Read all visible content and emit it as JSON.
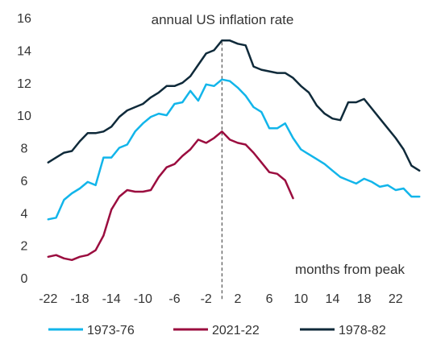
{
  "chart_data": {
    "type": "line",
    "title": "annual US inflation rate",
    "annotation": "months from peak",
    "xlim": [
      -23,
      26
    ],
    "ylim": [
      0,
      16
    ],
    "x_ticks": [
      "-22",
      "-18",
      "-14",
      "-10",
      "-6",
      "-2",
      "2",
      "6",
      "10",
      "14",
      "18",
      "22"
    ],
    "x_tick_values": [
      -22,
      -18,
      -14,
      -10,
      -6,
      -2,
      2,
      6,
      10,
      14,
      18,
      22
    ],
    "y_ticks": [
      "0",
      "2",
      "4",
      "6",
      "8",
      "10",
      "12",
      "14",
      "16"
    ],
    "y_tick_values": [
      0,
      2,
      4,
      6,
      8,
      10,
      12,
      14,
      16
    ],
    "peak_marker_x": 0,
    "legend_position": "bottom",
    "series": [
      {
        "name": "1973-76",
        "color": "#12b5ea",
        "x": [
          -22,
          -21,
          -20,
          -19,
          -18,
          -17,
          -16,
          -15,
          -14,
          -13,
          -12,
          -11,
          -10,
          -9,
          -8,
          -7,
          -6,
          -5,
          -4,
          -3,
          -2,
          -1,
          0,
          1,
          2,
          3,
          4,
          5,
          6,
          7,
          8,
          9,
          10,
          11,
          12,
          13,
          14,
          15,
          16,
          17,
          18,
          19,
          20,
          21,
          22,
          23,
          24,
          25
        ],
        "y": [
          3.6,
          3.7,
          4.8,
          5.2,
          5.5,
          5.9,
          5.7,
          7.4,
          7.4,
          8.0,
          8.2,
          9.0,
          9.5,
          9.9,
          10.1,
          10.0,
          10.7,
          10.8,
          11.5,
          10.9,
          11.9,
          11.8,
          12.2,
          12.1,
          11.7,
          11.2,
          10.5,
          10.2,
          9.2,
          9.2,
          9.5,
          8.6,
          7.9,
          7.6,
          7.3,
          7.0,
          6.6,
          6.2,
          6.0,
          5.8,
          6.1,
          5.9,
          5.6,
          5.7,
          5.4,
          5.5,
          5.0,
          5.0
        ]
      },
      {
        "name": "2021-22",
        "color": "#9b0d3f",
        "x": [
          -22,
          -21,
          -20,
          -19,
          -18,
          -17,
          -16,
          -15,
          -14,
          -13,
          -12,
          -11,
          -10,
          -9,
          -8,
          -7,
          -6,
          -5,
          -4,
          -3,
          -2,
          -1,
          0,
          1,
          2,
          3,
          4,
          5,
          6,
          7,
          8,
          9
        ],
        "y": [
          1.3,
          1.4,
          1.2,
          1.1,
          1.3,
          1.4,
          1.7,
          2.6,
          4.2,
          5.0,
          5.4,
          5.3,
          5.3,
          5.4,
          6.2,
          6.8,
          7.0,
          7.5,
          7.9,
          8.5,
          8.3,
          8.6,
          9.0,
          8.5,
          8.3,
          8.2,
          7.7,
          7.1,
          6.5,
          6.4,
          6.0,
          4.9
        ]
      },
      {
        "name": "1978-82",
        "color": "#0f2a3a",
        "x": [
          -22,
          -21,
          -20,
          -19,
          -18,
          -17,
          -16,
          -15,
          -14,
          -13,
          -12,
          -11,
          -10,
          -9,
          -8,
          -7,
          -6,
          -5,
          -4,
          -3,
          -2,
          -1,
          0,
          1,
          2,
          3,
          4,
          5,
          6,
          7,
          8,
          9,
          10,
          11,
          12,
          13,
          14,
          15,
          16,
          17,
          18,
          19,
          20,
          21,
          22,
          23,
          24,
          25
        ],
        "y": [
          7.1,
          7.4,
          7.7,
          7.8,
          8.4,
          8.9,
          8.9,
          9.0,
          9.3,
          9.9,
          10.3,
          10.5,
          10.7,
          11.1,
          11.4,
          11.8,
          11.8,
          12.0,
          12.4,
          13.1,
          13.8,
          14.0,
          14.6,
          14.6,
          14.4,
          14.3,
          13.0,
          12.8,
          12.7,
          12.6,
          12.6,
          12.3,
          11.8,
          11.4,
          10.6,
          10.1,
          9.8,
          9.7,
          10.8,
          10.8,
          11.0,
          10.4,
          9.8,
          9.2,
          8.6,
          7.9,
          6.9,
          6.6
        ]
      }
    ]
  }
}
